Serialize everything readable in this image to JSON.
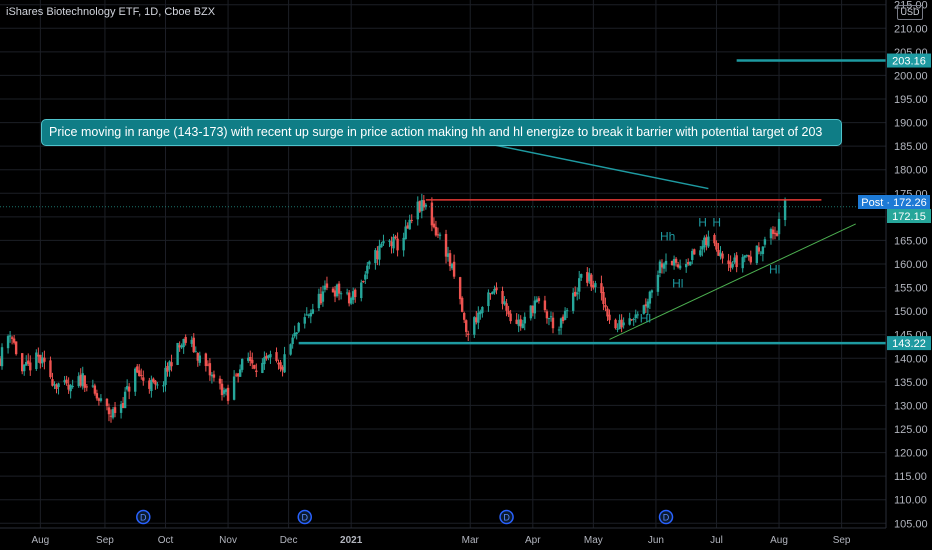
{
  "header": {
    "title": "iShares Biotechnology ETF, 1D, Cboe BZX",
    "currency": "USD"
  },
  "annotation": {
    "text": "Price moving in range (143-173) with recent up surge in price action making hh and hl energize to break it barrier with potential target of 203"
  },
  "colors": {
    "up": "#26a69a",
    "down": "#ef5350",
    "background": "#000000",
    "grid": "#1c1f26",
    "teal_line": "#1e9aa1",
    "resistance": "#e53935",
    "trend": "#4caf50",
    "text": "#b2b5be"
  },
  "chart_data": {
    "type": "candlestick",
    "ylim": [
      104,
      216
    ],
    "y_ticks": [
      105,
      110,
      115,
      120,
      125,
      130,
      135,
      140,
      145,
      150,
      155,
      160,
      165,
      170,
      175,
      180,
      185,
      190,
      195,
      200,
      205,
      210,
      215
    ],
    "x_ticks": [
      {
        "label": "Aug",
        "day": 9
      },
      {
        "label": "Sep",
        "day": 41
      },
      {
        "label": "Oct",
        "day": 71
      },
      {
        "label": "Nov",
        "day": 102
      },
      {
        "label": "Dec",
        "day": 132
      },
      {
        "label": "2021",
        "day": 163
      },
      {
        "label": "Mar",
        "day": 222
      },
      {
        "label": "Apr",
        "day": 253
      },
      {
        "label": "May",
        "day": 283
      },
      {
        "label": "Jun",
        "day": 314
      },
      {
        "label": "Jul",
        "day": 344
      },
      {
        "label": "Aug",
        "day": 375
      },
      {
        "label": "Sep",
        "day": 406
      }
    ],
    "x_range": [
      -11,
      428
    ],
    "price_path": [
      [
        -11,
        140
      ],
      [
        -6,
        146
      ],
      [
        0,
        137
      ],
      [
        8,
        140
      ],
      [
        16,
        135
      ],
      [
        24,
        133
      ],
      [
        30,
        136
      ],
      [
        36,
        132
      ],
      [
        44,
        128
      ],
      [
        50,
        131
      ],
      [
        56,
        137
      ],
      [
        62,
        135
      ],
      [
        68,
        133
      ],
      [
        75,
        141
      ],
      [
        82,
        144
      ],
      [
        88,
        140
      ],
      [
        94,
        136
      ],
      [
        100,
        133
      ],
      [
        102,
        131
      ],
      [
        106,
        137
      ],
      [
        112,
        140
      ],
      [
        118,
        138
      ],
      [
        124,
        140
      ],
      [
        128,
        137
      ],
      [
        132,
        142
      ],
      [
        138,
        147
      ],
      [
        146,
        152
      ],
      [
        152,
        155
      ],
      [
        158,
        154
      ],
      [
        162,
        152
      ],
      [
        168,
        156
      ],
      [
        174,
        161
      ],
      [
        180,
        165
      ],
      [
        186,
        164
      ],
      [
        192,
        168
      ],
      [
        196,
        172
      ],
      [
        200,
        172
      ],
      [
        205,
        167
      ],
      [
        210,
        163
      ],
      [
        214,
        157
      ],
      [
        218,
        150
      ],
      [
        220,
        145
      ],
      [
        224,
        148
      ],
      [
        230,
        152
      ],
      [
        236,
        155
      ],
      [
        242,
        149
      ],
      [
        248,
        147
      ],
      [
        254,
        152
      ],
      [
        260,
        149
      ],
      [
        266,
        146
      ],
      [
        272,
        152
      ],
      [
        278,
        158
      ],
      [
        284,
        155
      ],
      [
        290,
        150
      ],
      [
        294,
        146
      ],
      [
        298,
        148
      ],
      [
        304,
        150
      ],
      [
        308,
        151
      ],
      [
        312,
        155
      ],
      [
        316,
        160
      ],
      [
        320,
        162
      ],
      [
        324,
        159
      ],
      [
        328,
        161
      ],
      [
        334,
        162
      ],
      [
        340,
        165
      ],
      [
        346,
        163
      ],
      [
        350,
        161
      ],
      [
        354,
        160
      ],
      [
        358,
        162
      ],
      [
        362,
        161
      ],
      [
        366,
        164
      ],
      [
        370,
        166
      ],
      [
        374,
        167
      ],
      [
        378,
        172
      ]
    ],
    "volatility": 1.6,
    "seed": 11,
    "levels": [
      {
        "price": 143.22,
        "label": "143.22",
        "day_start": 137,
        "day_end": 428,
        "color": "teal"
      },
      {
        "price": 203.16,
        "label": "203.16",
        "day_start": 354,
        "day_end": 428,
        "color": "teal"
      },
      {
        "price": 173.6,
        "label": "",
        "day_start": 200,
        "day_end": 396,
        "color": "red"
      }
    ],
    "price_tags": [
      {
        "text": "Post · 172.26",
        "price": 172.26
      },
      {
        "text": "172.15",
        "price": 172.15
      }
    ],
    "trendline": {
      "start": [
        291,
        144
      ],
      "end": [
        413,
        168.5
      ]
    },
    "pointer": {
      "start": [
        208,
        187.5
      ],
      "end": [
        340,
        176
      ]
    },
    "swing_labels": [
      {
        "text": "Hh",
        "day": 316,
        "price": 165
      },
      {
        "text": "H",
        "day": 335,
        "price": 168
      },
      {
        "text": "H",
        "day": 342,
        "price": 168
      },
      {
        "text": "Hl",
        "day": 322,
        "price": 155
      },
      {
        "text": "Hl",
        "day": 370,
        "price": 158
      },
      {
        "text": "Hl",
        "day": 306,
        "price": 147.6
      }
    ],
    "events": [
      {
        "text": "D",
        "day": 60
      },
      {
        "text": "D",
        "day": 140
      },
      {
        "text": "D",
        "day": 240
      },
      {
        "text": "D",
        "day": 319
      }
    ]
  }
}
